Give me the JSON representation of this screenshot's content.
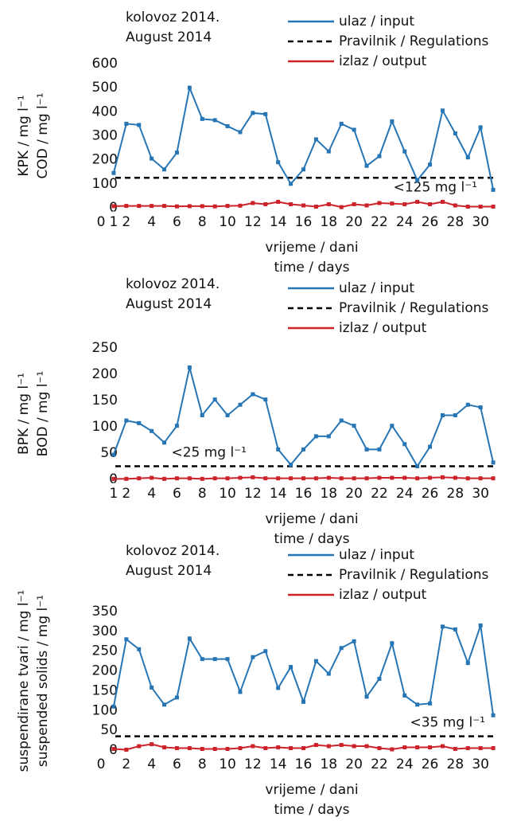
{
  "chart_data": [
    {
      "type": "line",
      "title": [
        "kolovoz 2014.",
        "August 2014"
      ],
      "y_label": [
        "KPK / mg l⁻¹",
        "COD / mg l⁻¹"
      ],
      "x_label": [
        "vrijeme / dani",
        "time / days"
      ],
      "x": [
        1,
        2,
        3,
        4,
        5,
        6,
        7,
        8,
        9,
        10,
        11,
        12,
        13,
        14,
        15,
        16,
        17,
        18,
        19,
        20,
        21,
        22,
        23,
        24,
        25,
        26,
        27,
        28,
        29,
        30,
        31
      ],
      "xlim": [
        0,
        32
      ],
      "xticks": [
        0,
        1,
        2,
        4,
        6,
        8,
        10,
        12,
        14,
        16,
        18,
        20,
        22,
        24,
        26,
        28,
        30
      ],
      "ylim": [
        0,
        600
      ],
      "yticks": [
        0,
        100,
        200,
        300,
        400,
        500,
        600
      ],
      "series": [
        {
          "name": "ulaz / input",
          "color": "#2675b5",
          "values": [
            145,
            350,
            345,
            205,
            160,
            230,
            500,
            370,
            365,
            340,
            315,
            395,
            390,
            190,
            100,
            160,
            285,
            235,
            350,
            325,
            175,
            215,
            360,
            235,
            115,
            180,
            405,
            310,
            210,
            335,
            75
          ]
        },
        {
          "name": "izlaz / output",
          "color": "#cc2229",
          "values": [
            7,
            8,
            8,
            8,
            8,
            6,
            7,
            7,
            6,
            8,
            9,
            20,
            15,
            25,
            15,
            10,
            5,
            15,
            3,
            15,
            10,
            20,
            18,
            15,
            25,
            15,
            25,
            10,
            5,
            5,
            5
          ]
        }
      ],
      "reference_line": {
        "name": "Pravilnik / Regulations",
        "value": 125,
        "label": "<125 mg l⁻¹"
      }
    },
    {
      "type": "line",
      "title": [
        "kolovoz 2014.",
        "August 2014"
      ],
      "y_label": [
        "BPK / mg l⁻¹",
        "BOD / mg l⁻¹"
      ],
      "x_label": [
        "vrijeme / dani",
        "time / days"
      ],
      "x": [
        1,
        2,
        3,
        4,
        5,
        6,
        7,
        8,
        9,
        10,
        11,
        12,
        13,
        14,
        15,
        16,
        17,
        18,
        19,
        20,
        21,
        22,
        23,
        24,
        25,
        26,
        27,
        28,
        29,
        30,
        31
      ],
      "xlim": [
        0,
        32
      ],
      "xticks": [
        1,
        2,
        4,
        6,
        8,
        10,
        12,
        14,
        16,
        18,
        20,
        22,
        24,
        26,
        28,
        30
      ],
      "ylim": [
        0,
        250
      ],
      "yticks": [
        0,
        50,
        100,
        150,
        200,
        250
      ],
      "series": [
        {
          "name": "ulaz / input",
          "color": "#2675b5",
          "values": [
            47,
            112,
            107,
            92,
            70,
            102,
            213,
            122,
            152,
            122,
            142,
            162,
            152,
            57,
            28,
            57,
            82,
            82,
            112,
            102,
            57,
            57,
            102,
            67,
            25,
            62,
            122,
            122,
            142,
            137,
            32
          ]
        },
        {
          "name": "izlaz / output",
          "color": "#cc2229",
          "values": [
            1,
            1,
            2,
            3,
            1,
            2,
            2,
            1,
            2,
            2,
            3,
            4,
            2,
            2,
            2,
            2,
            2,
            3,
            2,
            2,
            2,
            3,
            3,
            3,
            2,
            3,
            4,
            3,
            2,
            2,
            2
          ]
        }
      ],
      "reference_line": {
        "name": "Pravilnik / Regulations",
        "value": 25,
        "label": "<25 mg l⁻¹"
      }
    },
    {
      "type": "line",
      "title": [
        "kolovoz 2014.",
        "August 2014"
      ],
      "y_label": [
        "suspendirane tvari / mg l⁻¹",
        "suspended solids / mg l⁻¹"
      ],
      "x_label": [
        "vrijeme / dani",
        "time / days"
      ],
      "x": [
        1,
        2,
        3,
        4,
        5,
        6,
        7,
        8,
        9,
        10,
        11,
        12,
        13,
        14,
        15,
        16,
        17,
        18,
        19,
        20,
        21,
        22,
        23,
        24,
        25,
        26,
        27,
        28,
        29,
        30,
        31
      ],
      "xlim": [
        0,
        32
      ],
      "xticks": [
        0,
        2,
        4,
        6,
        8,
        10,
        12,
        14,
        16,
        18,
        20,
        22,
        24,
        26,
        28,
        30
      ],
      "ylim": [
        0,
        350
      ],
      "yticks": [
        0,
        50,
        100,
        150,
        200,
        250,
        300,
        350
      ],
      "series": [
        {
          "name": "ulaz / input",
          "color": "#2675b5",
          "values": [
            110,
            280,
            255,
            158,
            115,
            133,
            282,
            230,
            230,
            230,
            147,
            235,
            250,
            157,
            210,
            122,
            225,
            193,
            258,
            275,
            135,
            180,
            270,
            138,
            115,
            118,
            312,
            305,
            220,
            315,
            88
          ]
        },
        {
          "name": "izlaz / output",
          "color": "#cc2229",
          "values": [
            3,
            1,
            10,
            15,
            7,
            5,
            5,
            3,
            3,
            3,
            5,
            10,
            5,
            7,
            5,
            5,
            13,
            10,
            13,
            10,
            10,
            5,
            2,
            7,
            7,
            7,
            10,
            3,
            5,
            5,
            5
          ]
        }
      ],
      "reference_line": {
        "name": "Pravilnik / Regulations",
        "value": 35,
        "label": "<35 mg l⁻¹"
      }
    }
  ]
}
